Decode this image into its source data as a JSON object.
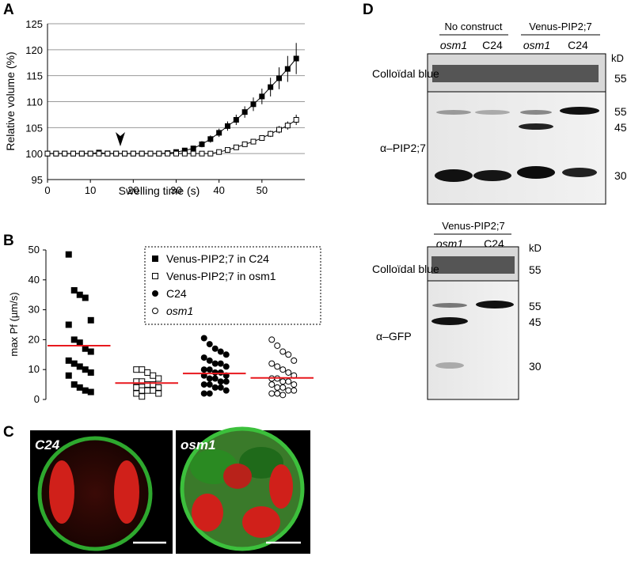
{
  "panels": {
    "a": "A",
    "b": "B",
    "c": "C",
    "d": "D"
  },
  "chart_data": [
    {
      "type": "line",
      "xlabel": "Swelling time (s)",
      "ylabel": "Relative volume (%)",
      "x": [
        0,
        2,
        4,
        6,
        8,
        10,
        12,
        14,
        16,
        18,
        20,
        22,
        24,
        26,
        28,
        30,
        32,
        34,
        36,
        38,
        40,
        42,
        44,
        46,
        48,
        50,
        52,
        54,
        56,
        58
      ],
      "xlim": [
        0,
        60
      ],
      "xticks": [
        0,
        10,
        20,
        30,
        40,
        50
      ],
      "ylim": [
        95,
        125
      ],
      "yticks": [
        95,
        100,
        105,
        110,
        115,
        120,
        125
      ],
      "grid": true,
      "series": [
        {
          "color": "#000000",
          "marker": "square",
          "filled": true,
          "values": [
            100,
            100,
            100,
            100,
            100,
            100,
            100.2,
            100,
            100,
            100,
            100,
            100,
            100,
            100,
            100.1,
            100.3,
            100.6,
            101,
            101.8,
            102.8,
            104,
            105.3,
            106.5,
            108,
            109.5,
            111,
            112.8,
            114.5,
            116.3,
            118.3
          ],
          "errors": [
            0.2,
            0.2,
            0.2,
            0.2,
            0.2,
            0.2,
            0.2,
            0.2,
            0.2,
            0.2,
            0.2,
            0.2,
            0.2,
            0.2,
            0.2,
            0.3,
            0.4,
            0.5,
            0.6,
            0.7,
            0.8,
            0.9,
            1,
            1.1,
            1.3,
            1.5,
            1.8,
            2.1,
            2.5,
            3
          ]
        },
        {
          "color": "#000000",
          "marker": "square",
          "filled": false,
          "values": [
            100,
            100,
            100,
            100,
            100,
            100,
            100,
            100,
            100,
            100,
            100,
            100,
            100,
            100,
            100,
            100,
            100,
            100,
            100,
            100,
            100.3,
            100.7,
            101.2,
            101.8,
            102.3,
            103,
            103.8,
            104.6,
            105.4,
            106.5
          ],
          "errors": [
            0.2,
            0.2,
            0.2,
            0.2,
            0.2,
            0.2,
            0.2,
            0.2,
            0.2,
            0.2,
            0.2,
            0.2,
            0.2,
            0.2,
            0.2,
            0.2,
            0.2,
            0.2,
            0.2,
            0.2,
            0.2,
            0.3,
            0.3,
            0.4,
            0.4,
            0.5,
            0.6,
            0.7,
            0.8,
            1
          ]
        }
      ]
    },
    {
      "type": "dot",
      "ylabel": "max Pf (µm/s)",
      "ylim": [
        0,
        50
      ],
      "yticks": [
        0,
        10,
        20,
        30,
        40,
        50
      ],
      "mean_color": "#e8181e",
      "series": [
        {
          "name": "Venus-PIP2;7 in C24",
          "marker": "square",
          "filled": true,
          "font_style": "normal",
          "mean": 18,
          "values": [
            48.5,
            36.5,
            35,
            34,
            26.5,
            25,
            20,
            19,
            17,
            16,
            13,
            12,
            11,
            10,
            9,
            8,
            5,
            4,
            3,
            2.5
          ]
        },
        {
          "name": "Venus-PIP2;7 in osm1",
          "marker": "square",
          "filled": false,
          "font_style": "normal",
          "mean": 5.5,
          "values": [
            10,
            10,
            9,
            8,
            7,
            6,
            6,
            5,
            5,
            4,
            4,
            3,
            3,
            3,
            2,
            2,
            1
          ]
        },
        {
          "name": "C24",
          "marker": "circle",
          "filled": true,
          "font_style": "normal",
          "mean": 8.7,
          "values": [
            20.5,
            18.5,
            17,
            16,
            15,
            14,
            13,
            12,
            12,
            11,
            10,
            10,
            9,
            9,
            8,
            8,
            7,
            7,
            6,
            6,
            5,
            5,
            4,
            4,
            3,
            2,
            2
          ]
        },
        {
          "name": "osm1",
          "marker": "circle",
          "filled": false,
          "font_style": "italic",
          "mean": 7.2,
          "values": [
            20,
            18,
            16,
            15,
            13,
            12,
            11,
            10,
            9,
            8,
            7,
            7,
            6,
            6,
            5,
            5,
            4,
            4,
            3,
            3,
            2,
            2,
            1.5
          ]
        }
      ]
    }
  ],
  "micrographs": [
    "C24",
    "osm1"
  ],
  "blot_top": {
    "groups": [
      "No construct",
      "Venus-PIP2;7"
    ],
    "lanes": [
      "osm1",
      "C24",
      "osm1",
      "C24"
    ],
    "unit": "kD",
    "stain": "Colloïdal blue",
    "stain_marker": "55",
    "antibody": "α–PIP2;7",
    "markers": [
      "55",
      "45",
      "30"
    ]
  },
  "blot_bottom": {
    "group": "Venus-PIP2;7",
    "lanes": [
      "osm1",
      "C24"
    ],
    "unit": "kD",
    "stain": "Colloïdal blue",
    "stain_marker": "55",
    "antibody": "α–GFP",
    "markers": [
      "55",
      "45",
      "30"
    ]
  }
}
